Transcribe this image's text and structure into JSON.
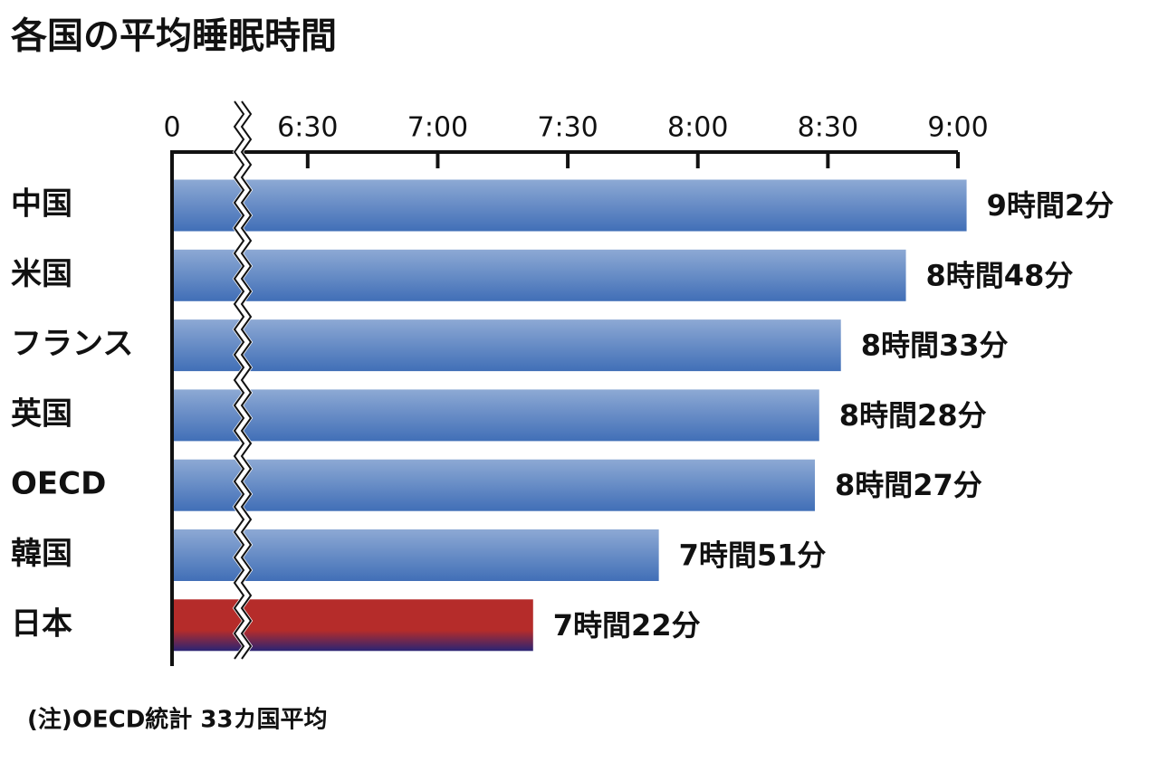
{
  "chart_data": {
    "type": "bar",
    "orientation": "horizontal",
    "title": "各国の平均睡眠時間",
    "note": "(注)OECD統計 33カ国平均",
    "categories": [
      "中国",
      "米国",
      "フランス",
      "英国",
      "OECD",
      "韓国",
      "日本"
    ],
    "values": [
      542,
      528,
      513,
      508,
      507,
      471,
      442
    ],
    "value_labels": [
      "9時間2分",
      "8時間48分",
      "8時間33分",
      "8時間28分",
      "8時間27分",
      "7時間51分",
      "7時間22分"
    ],
    "colors": [
      "#416fb7",
      "#416fb7",
      "#416fb7",
      "#416fb7",
      "#416fb7",
      "#416fb7",
      "#b52c2a"
    ],
    "xlim": [
      0,
      540
    ],
    "axis_break": [
      0,
      375
    ],
    "xticks": [
      0,
      {
        "value": 390,
        "label": "6:30"
      },
      {
        "value": 420,
        "label": "7:00"
      },
      {
        "value": 450,
        "label": "7:30"
      },
      {
        "value": 480,
        "label": "8:00"
      },
      {
        "value": 510,
        "label": "8:30"
      },
      {
        "value": 540,
        "label": "9:00"
      }
    ]
  }
}
